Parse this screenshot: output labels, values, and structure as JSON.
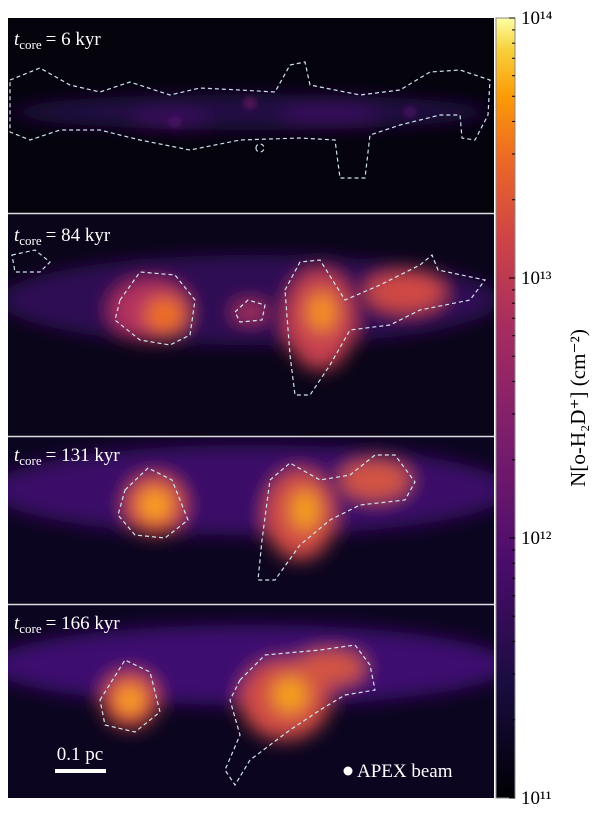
{
  "panels": [
    {
      "symbol": "t",
      "subscript": "core",
      "text": "= 6 kyr"
    },
    {
      "symbol": "t",
      "subscript": "core",
      "text": "= 84 kyr"
    },
    {
      "symbol": "t",
      "subscript": "core",
      "text": "= 131 kyr"
    },
    {
      "symbol": "t",
      "subscript": "core",
      "text": "= 166 kyr"
    }
  ],
  "scale_bar": "0.1 pc",
  "beam_label": "APEX beam",
  "colorbar": {
    "label": "N[o-H₂D⁺] (cm⁻²)",
    "scale": "log",
    "lim": [
      100000000000,
      100000000000000
    ],
    "ticks": [
      {
        "value": 100000000000,
        "label": "10¹¹"
      },
      {
        "value": 1000000000000,
        "label": "10¹²"
      },
      {
        "value": 10000000000000,
        "label": "10¹³"
      },
      {
        "value": 100000000000000,
        "label": "10¹⁴"
      }
    ]
  }
}
